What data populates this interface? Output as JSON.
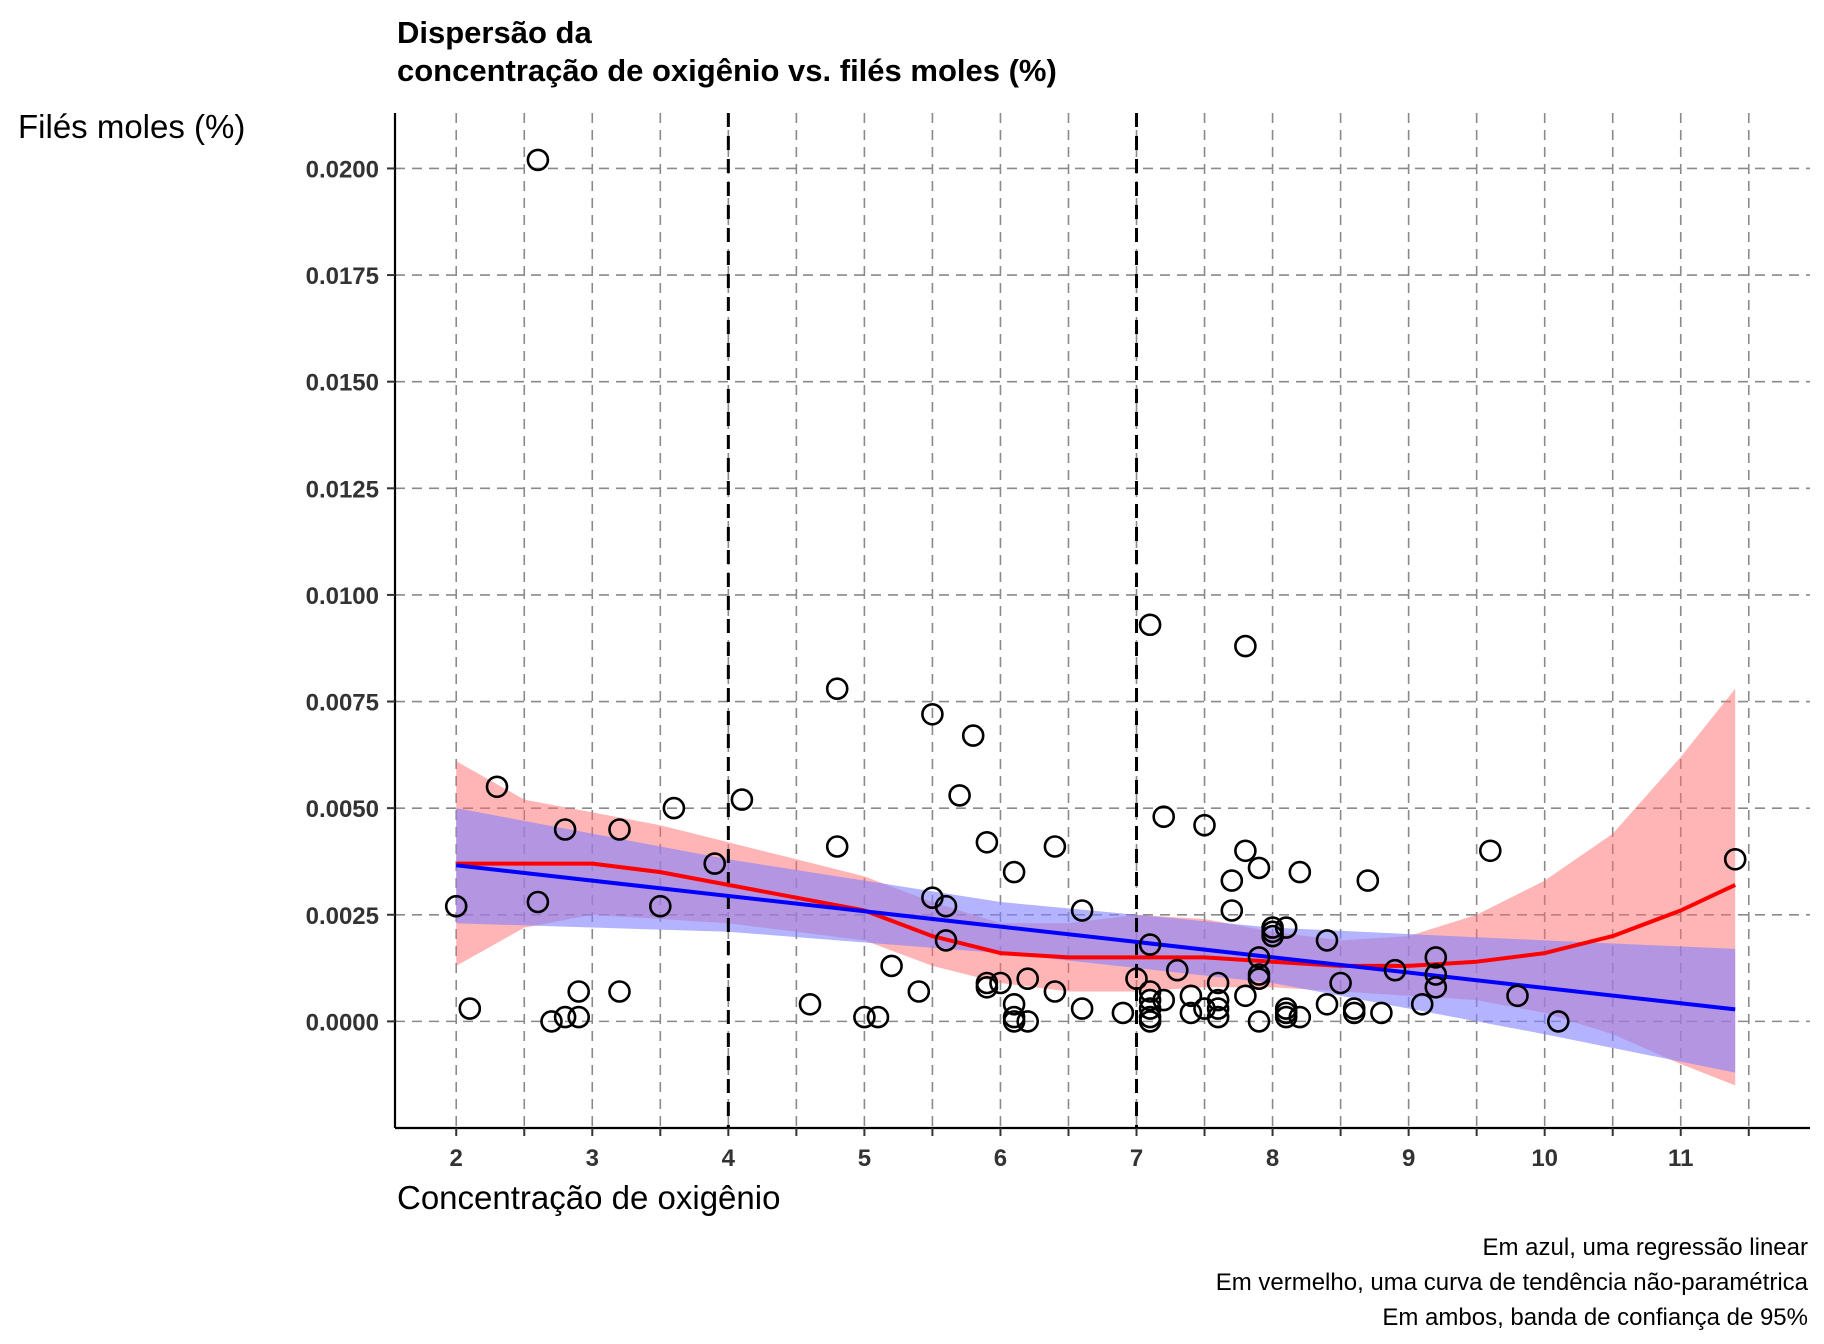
{
  "chart_data": {
    "type": "scatter",
    "title": "Dispersão da\nconcentração de oxigênio vs. filés moles (%)",
    "title_lines": [
      "Dispersão da",
      "concentração de oxigênio vs. filés moles (%)"
    ],
    "xlabel": "Concentração de oxigênio",
    "ylabel": "Filés moles (%)",
    "caption_lines": [
      "Em azul, uma regressão linear",
      "Em vermelho, uma curva de tendência não-paramétrica",
      "Em ambos, banda de confiança de 95%"
    ],
    "xlim": [
      1.55,
      11.95
    ],
    "ylim": [
      -0.0025,
      0.0213
    ],
    "x_ticks": [
      2,
      3,
      4,
      5,
      6,
      7,
      8,
      9,
      10,
      11
    ],
    "x_tick_labels": [
      "2",
      "3",
      "4",
      "5",
      "6",
      "7",
      "8",
      "9",
      "10",
      "11"
    ],
    "y_ticks": [
      0,
      0.0025,
      0.005,
      0.0075,
      0.01,
      0.0125,
      0.015,
      0.0175,
      0.02
    ],
    "y_tick_labels": [
      "0.0000",
      "0.0025",
      "0.0050",
      "0.0075",
      "0.0100",
      "0.0125",
      "0.0150",
      "0.0175",
      "0.0200"
    ],
    "x_minor_gridlines": [
      2.5,
      3.5,
      4.5,
      5.5,
      6.5,
      7.5,
      8.5,
      9.5,
      10.5,
      11.5
    ],
    "grid": true,
    "reference_lines_x": [
      4,
      7
    ],
    "colors": {
      "points": "#000000",
      "linear": "#0000ff",
      "loess": "#ff0000",
      "linear_band": "#8080ff",
      "loess_band": "#ff6b6b"
    },
    "points": [
      [
        2.0,
        0.0027
      ],
      [
        2.1,
        0.0003
      ],
      [
        2.3,
        0.0055
      ],
      [
        2.6,
        0.0202
      ],
      [
        2.6,
        0.0028
      ],
      [
        2.7,
        0.0
      ],
      [
        2.8,
        0.0001
      ],
      [
        2.8,
        0.0045
      ],
      [
        2.9,
        0.0001
      ],
      [
        2.9,
        0.0007
      ],
      [
        3.2,
        0.0045
      ],
      [
        3.2,
        0.0007
      ],
      [
        3.5,
        0.0027
      ],
      [
        3.6,
        0.005
      ],
      [
        3.9,
        0.0037
      ],
      [
        4.1,
        0.0052
      ],
      [
        4.6,
        0.0004
      ],
      [
        4.8,
        0.0078
      ],
      [
        4.8,
        0.0041
      ],
      [
        5.0,
        0.0001
      ],
      [
        5.1,
        0.0001
      ],
      [
        5.2,
        0.0013
      ],
      [
        5.4,
        0.0007
      ],
      [
        5.5,
        0.0072
      ],
      [
        5.5,
        0.0029
      ],
      [
        5.6,
        0.0027
      ],
      [
        5.6,
        0.0019
      ],
      [
        5.7,
        0.0053
      ],
      [
        5.8,
        0.0067
      ],
      [
        5.9,
        0.0042
      ],
      [
        5.9,
        0.0008
      ],
      [
        5.9,
        0.0009
      ],
      [
        6.0,
        0.0009
      ],
      [
        6.1,
        0.0035
      ],
      [
        6.1,
        0.0004
      ],
      [
        6.1,
        0.0001
      ],
      [
        6.1,
        0.0
      ],
      [
        6.2,
        0.001
      ],
      [
        6.2,
        0.0
      ],
      [
        6.4,
        0.0041
      ],
      [
        6.4,
        0.0007
      ],
      [
        6.6,
        0.0026
      ],
      [
        6.6,
        0.0003
      ],
      [
        6.9,
        0.0002
      ],
      [
        7.0,
        0.001
      ],
      [
        7.1,
        0.0093
      ],
      [
        7.1,
        0.0018
      ],
      [
        7.1,
        0.0007
      ],
      [
        7.1,
        0.0005
      ],
      [
        7.1,
        0.0003
      ],
      [
        7.1,
        0.0001
      ],
      [
        7.1,
        0.0
      ],
      [
        7.2,
        0.0048
      ],
      [
        7.2,
        0.0005
      ],
      [
        7.3,
        0.0012
      ],
      [
        7.4,
        0.0006
      ],
      [
        7.4,
        0.0002
      ],
      [
        7.5,
        0.0046
      ],
      [
        7.5,
        0.0003
      ],
      [
        7.6,
        0.0009
      ],
      [
        7.6,
        0.0005
      ],
      [
        7.6,
        0.0003
      ],
      [
        7.6,
        0.0001
      ],
      [
        7.7,
        0.0033
      ],
      [
        7.7,
        0.0026
      ],
      [
        7.8,
        0.0088
      ],
      [
        7.8,
        0.004
      ],
      [
        7.8,
        0.0006
      ],
      [
        7.9,
        0.0036
      ],
      [
        7.9,
        0.0015
      ],
      [
        7.9,
        0.0011
      ],
      [
        7.9,
        0.001
      ],
      [
        7.9,
        0.0
      ],
      [
        8.0,
        0.0022
      ],
      [
        8.0,
        0.0021
      ],
      [
        8.0,
        0.002
      ],
      [
        8.1,
        0.0022
      ],
      [
        8.1,
        0.0003
      ],
      [
        8.1,
        0.0002
      ],
      [
        8.1,
        0.0001
      ],
      [
        8.2,
        0.0035
      ],
      [
        8.2,
        0.0001
      ],
      [
        8.4,
        0.0019
      ],
      [
        8.4,
        0.0004
      ],
      [
        8.5,
        0.0009
      ],
      [
        8.6,
        0.0003
      ],
      [
        8.6,
        0.0002
      ],
      [
        8.7,
        0.0033
      ],
      [
        8.8,
        0.0002
      ],
      [
        8.9,
        0.0012
      ],
      [
        9.1,
        0.0004
      ],
      [
        9.2,
        0.0015
      ],
      [
        9.2,
        0.0011
      ],
      [
        9.2,
        0.0008
      ],
      [
        9.6,
        0.004
      ],
      [
        9.8,
        0.0006
      ],
      [
        10.1,
        0.0
      ],
      [
        11.4,
        0.0038
      ]
    ],
    "linear_fit": {
      "x": [
        2.0,
        11.4
      ],
      "y": [
        0.00366,
        0.00028
      ]
    },
    "linear_band": {
      "x": [
        2.0,
        4.0,
        6.0,
        8.0,
        10.0,
        11.4
      ],
      "lower": [
        0.0023,
        0.0021,
        0.0016,
        0.0009,
        -0.0003,
        -0.0012
      ],
      "upper": [
        0.005,
        0.0038,
        0.0028,
        0.0022,
        0.0019,
        0.0017
      ]
    },
    "loess_fit": {
      "x": [
        2.0,
        2.5,
        3.0,
        3.5,
        4.0,
        4.5,
        5.0,
        5.5,
        6.0,
        6.5,
        7.0,
        7.5,
        8.0,
        8.5,
        9.0,
        9.5,
        10.0,
        10.5,
        11.0,
        11.4
      ],
      "y": [
        0.0037,
        0.0037,
        0.0037,
        0.0035,
        0.0032,
        0.0029,
        0.0026,
        0.002,
        0.0016,
        0.0015,
        0.0015,
        0.0015,
        0.0014,
        0.0013,
        0.0013,
        0.0014,
        0.0016,
        0.002,
        0.0026,
        0.0032
      ]
    },
    "loess_band": {
      "x": [
        2.0,
        2.5,
        3.0,
        3.5,
        4.0,
        4.5,
        5.0,
        5.5,
        6.0,
        6.5,
        7.0,
        7.5,
        8.0,
        8.5,
        9.0,
        9.5,
        10.0,
        10.5,
        11.0,
        11.4
      ],
      "lower": [
        0.0013,
        0.0022,
        0.0025,
        0.0024,
        0.0023,
        0.0021,
        0.0019,
        0.0013,
        0.0009,
        0.0007,
        0.0007,
        0.0008,
        0.0008,
        0.0007,
        0.0006,
        0.0005,
        0.0002,
        -0.0003,
        -0.001,
        -0.0015
      ],
      "upper": [
        0.0061,
        0.0052,
        0.0049,
        0.0046,
        0.0042,
        0.0038,
        0.0034,
        0.0028,
        0.0023,
        0.0023,
        0.0025,
        0.0024,
        0.0021,
        0.0019,
        0.002,
        0.0025,
        0.0033,
        0.0044,
        0.0062,
        0.0078
      ]
    }
  }
}
